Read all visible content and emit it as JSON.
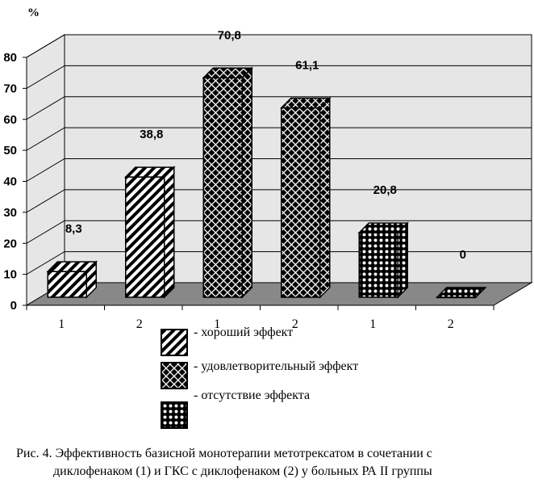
{
  "chart_data": {
    "type": "bar",
    "ylabel": "%",
    "ylim": [
      0,
      80
    ],
    "yticks": [
      "0",
      "10",
      "20",
      "30",
      "40",
      "50",
      "60",
      "70",
      "80"
    ],
    "grid": true,
    "style": "3d",
    "groups": [
      {
        "series": "хороший эффект",
        "pattern": "stripes",
        "bars": [
          {
            "category": "1",
            "value": 8.3,
            "label": "8,3"
          },
          {
            "category": "2",
            "value": 38.8,
            "label": "38,8"
          }
        ]
      },
      {
        "series": "удовлетворительный эффект",
        "pattern": "crosshatch",
        "bars": [
          {
            "category": "1",
            "value": 70.8,
            "label": "70,8"
          },
          {
            "category": "2",
            "value": 61.1,
            "label": "61,1"
          }
        ]
      },
      {
        "series": "отсутствие эффекта",
        "pattern": "dots",
        "bars": [
          {
            "category": "1",
            "value": 20.8,
            "label": "20,8"
          },
          {
            "category": "2",
            "value": 0,
            "label": "0"
          }
        ]
      }
    ]
  },
  "legend": [
    {
      "label": "- хороший эффект",
      "pattern": "stripes"
    },
    {
      "label": "- удовлетворительный эффект",
      "pattern": "crosshatch"
    },
    {
      "label": "- отсутствие эффекта",
      "pattern": "dots"
    }
  ],
  "caption": {
    "line1": "Рис. 4. Эффективность базисной монотерапии метотрексатом в сочетании с",
    "line2": "диклофенаком (1) и ГКС с диклофенаком (2) у больных РА II группы"
  },
  "colors": {
    "wall": "#e6e6e6",
    "floor": "#888888",
    "bar": "#000000",
    "pattern": "#ffffff"
  }
}
